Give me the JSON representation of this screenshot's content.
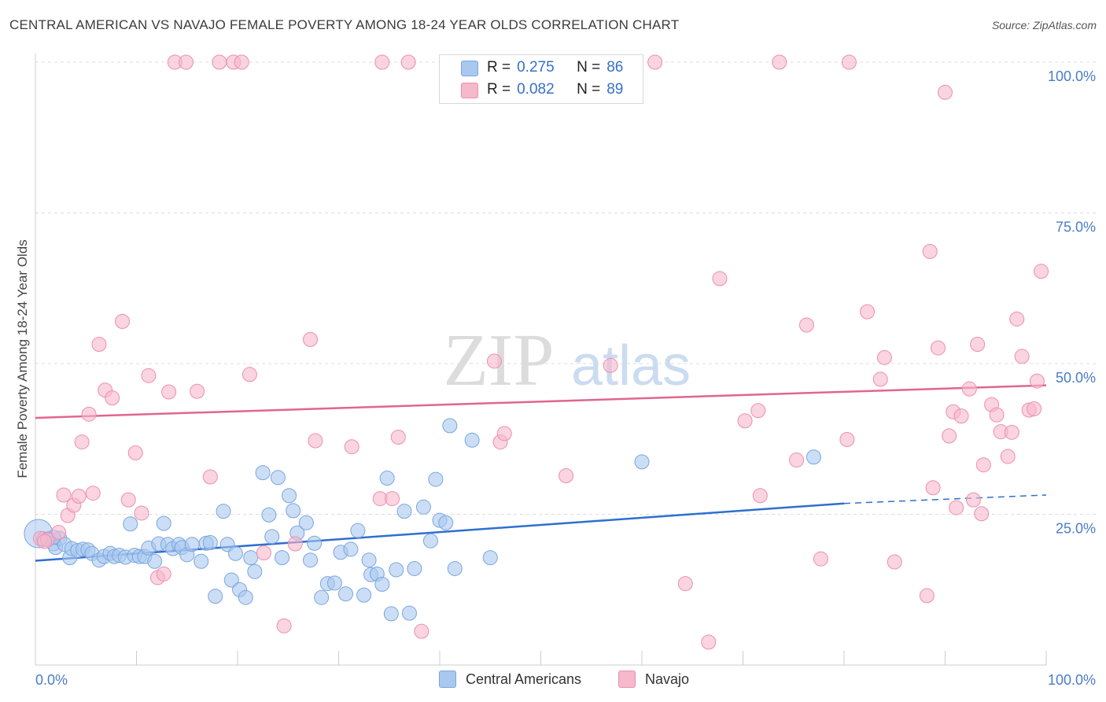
{
  "title": "CENTRAL AMERICAN VS NAVAJO FEMALE POVERTY AMONG 18-24 YEAR OLDS CORRELATION CHART",
  "source": "Source: ZipAtlas.com",
  "watermark": {
    "zip": "ZIP",
    "atlas": "atlas"
  },
  "colors": {
    "blue_fill": "#a9c8f0",
    "blue_stroke": "#7aa6de",
    "blue_line": "#2f6fcf",
    "pink_fill": "#f6b8cb",
    "pink_stroke": "#ec8fae",
    "pink_line": "#e0668f",
    "axis_text": "#4a7cc9",
    "grid": "#dddddd"
  },
  "legend": {
    "rows": [
      {
        "r_label": "R =",
        "r_value": "0.275",
        "n_label": "N =",
        "n_value": "86"
      },
      {
        "r_label": "R =",
        "r_value": "0.082",
        "n_label": "N =",
        "n_value": "89"
      }
    ]
  },
  "bottom_legend": {
    "series1": "Central Americans",
    "series2": "Navajo"
  },
  "chart_data": {
    "type": "scatter",
    "title": "CENTRAL AMERICAN VS NAVAJO FEMALE POVERTY AMONG 18-24 YEAR OLDS CORRELATION CHART",
    "xlabel": "",
    "ylabel": "Female Poverty Among 18-24 Year Olds",
    "xlim": [
      0,
      100
    ],
    "ylim": [
      0,
      100
    ],
    "x_tick_labels": [
      "0.0%",
      "100.0%"
    ],
    "y_tick_labels": [
      "25.0%",
      "50.0%",
      "75.0%",
      "100.0%"
    ],
    "y_ticks": [
      25,
      50,
      75,
      100
    ],
    "grid": true,
    "legend_position": "top-center",
    "series": [
      {
        "name": "Central Americans",
        "color": "#a9c8f0",
        "trend": {
          "x": [
            0,
            80
          ],
          "y": [
            17.3,
            26.8
          ],
          "dashed_to": [
            100,
            28.2
          ]
        },
        "points": [
          [
            0.3,
            21.8
          ],
          [
            0.8,
            20.9
          ],
          [
            1.3,
            20.9
          ],
          [
            1.8,
            20.1
          ],
          [
            2.0,
            19.5
          ],
          [
            2.4,
            21.0
          ],
          [
            2.9,
            20.0
          ],
          [
            3.4,
            17.8
          ],
          [
            3.6,
            19.3
          ],
          [
            4.2,
            19.0
          ],
          [
            4.7,
            19.2
          ],
          [
            5.2,
            19.1
          ],
          [
            5.6,
            18.5
          ],
          [
            6.3,
            17.4
          ],
          [
            6.8,
            18.0
          ],
          [
            7.4,
            18.5
          ],
          [
            7.8,
            18.0
          ],
          [
            8.3,
            18.2
          ],
          [
            8.9,
            17.9
          ],
          [
            9.4,
            23.4
          ],
          [
            9.8,
            18.2
          ],
          [
            10.3,
            18.0
          ],
          [
            10.8,
            18.0
          ],
          [
            11.2,
            19.4
          ],
          [
            11.8,
            17.2
          ],
          [
            12.2,
            20.1
          ],
          [
            12.7,
            23.5
          ],
          [
            13.1,
            20.0
          ],
          [
            13.6,
            19.3
          ],
          [
            14.2,
            20.0
          ],
          [
            14.5,
            19.5
          ],
          [
            15.0,
            18.3
          ],
          [
            15.5,
            20.0
          ],
          [
            16.4,
            17.2
          ],
          [
            16.9,
            20.2
          ],
          [
            17.3,
            20.3
          ],
          [
            17.8,
            11.4
          ],
          [
            18.6,
            25.5
          ],
          [
            19.0,
            20.0
          ],
          [
            19.4,
            14.1
          ],
          [
            19.8,
            18.5
          ],
          [
            20.2,
            12.5
          ],
          [
            20.8,
            11.2
          ],
          [
            21.3,
            17.8
          ],
          [
            21.7,
            15.5
          ],
          [
            22.5,
            31.9
          ],
          [
            23.1,
            24.9
          ],
          [
            23.4,
            21.3
          ],
          [
            24.0,
            31.1
          ],
          [
            24.4,
            17.8
          ],
          [
            25.1,
            28.1
          ],
          [
            25.5,
            25.6
          ],
          [
            25.9,
            21.9
          ],
          [
            26.8,
            23.6
          ],
          [
            27.2,
            17.4
          ],
          [
            27.6,
            20.2
          ],
          [
            28.3,
            11.2
          ],
          [
            28.9,
            13.5
          ],
          [
            29.6,
            13.6
          ],
          [
            30.2,
            18.7
          ],
          [
            30.7,
            11.8
          ],
          [
            31.2,
            19.2
          ],
          [
            31.9,
            22.3
          ],
          [
            32.5,
            11.6
          ],
          [
            33.0,
            17.4
          ],
          [
            33.2,
            15.0
          ],
          [
            33.8,
            15.1
          ],
          [
            34.3,
            13.4
          ],
          [
            34.8,
            31.0
          ],
          [
            35.2,
            8.5
          ],
          [
            35.7,
            15.8
          ],
          [
            36.5,
            25.5
          ],
          [
            37.0,
            8.6
          ],
          [
            37.5,
            16.0
          ],
          [
            38.4,
            26.2
          ],
          [
            39.1,
            20.6
          ],
          [
            39.6,
            30.8
          ],
          [
            40.0,
            24.0
          ],
          [
            40.6,
            23.6
          ],
          [
            41.0,
            39.7
          ],
          [
            41.5,
            16.0
          ],
          [
            43.2,
            37.3
          ],
          [
            45.0,
            17.8
          ],
          [
            60.0,
            33.7
          ],
          [
            77.0,
            34.5
          ],
          [
            1.8,
            21.2
          ]
        ]
      },
      {
        "name": "Navajo",
        "color": "#f6b8cb",
        "trend": {
          "x": [
            0,
            100
          ],
          "y": [
            41.0,
            46.4
          ]
        },
        "points": [
          [
            0.5,
            21.0
          ],
          [
            1.2,
            20.8
          ],
          [
            2.3,
            22.0
          ],
          [
            2.8,
            28.2
          ],
          [
            3.2,
            24.8
          ],
          [
            3.8,
            26.5
          ],
          [
            4.3,
            28.0
          ],
          [
            4.6,
            37.0
          ],
          [
            5.3,
            41.6
          ],
          [
            5.7,
            28.5
          ],
          [
            6.3,
            53.2
          ],
          [
            6.9,
            45.6
          ],
          [
            7.6,
            44.3
          ],
          [
            8.6,
            57.0
          ],
          [
            9.2,
            27.4
          ],
          [
            9.9,
            35.2
          ],
          [
            10.5,
            25.2
          ],
          [
            11.2,
            48.0
          ],
          [
            12.1,
            14.5
          ],
          [
            12.7,
            15.1
          ],
          [
            13.2,
            45.3
          ],
          [
            13.8,
            100
          ],
          [
            14.9,
            100
          ],
          [
            16.0,
            45.4
          ],
          [
            17.3,
            31.2
          ],
          [
            18.2,
            100
          ],
          [
            19.6,
            100
          ],
          [
            20.4,
            100
          ],
          [
            21.2,
            48.2
          ],
          [
            22.6,
            18.6
          ],
          [
            24.6,
            6.5
          ],
          [
            25.7,
            20.1
          ],
          [
            27.2,
            54.0
          ],
          [
            27.7,
            37.2
          ],
          [
            31.3,
            36.2
          ],
          [
            34.1,
            27.6
          ],
          [
            34.3,
            100
          ],
          [
            35.3,
            27.6
          ],
          [
            35.9,
            37.8
          ],
          [
            36.9,
            100
          ],
          [
            38.2,
            5.6
          ],
          [
            45.4,
            50.4
          ],
          [
            46.0,
            37.0
          ],
          [
            46.4,
            38.4
          ],
          [
            52.5,
            31.4
          ],
          [
            56.9,
            49.7
          ],
          [
            61.3,
            100
          ],
          [
            64.3,
            13.5
          ],
          [
            66.6,
            3.8
          ],
          [
            67.7,
            64.1
          ],
          [
            70.2,
            40.5
          ],
          [
            71.5,
            42.2
          ],
          [
            71.7,
            28.1
          ],
          [
            73.6,
            100
          ],
          [
            75.3,
            34.0
          ],
          [
            76.3,
            56.4
          ],
          [
            77.7,
            17.6
          ],
          [
            80.3,
            37.4
          ],
          [
            80.5,
            100
          ],
          [
            82.3,
            58.6
          ],
          [
            83.6,
            47.4
          ],
          [
            84.0,
            51.0
          ],
          [
            85.0,
            17.1
          ],
          [
            88.2,
            11.5
          ],
          [
            88.5,
            68.6
          ],
          [
            88.8,
            29.4
          ],
          [
            89.3,
            52.6
          ],
          [
            90.0,
            95.0
          ],
          [
            90.4,
            38.0
          ],
          [
            90.8,
            42.0
          ],
          [
            91.1,
            26.1
          ],
          [
            91.6,
            41.3
          ],
          [
            92.4,
            45.8
          ],
          [
            92.8,
            27.4
          ],
          [
            93.2,
            53.2
          ],
          [
            93.6,
            25.1
          ],
          [
            93.8,
            33.2
          ],
          [
            94.6,
            43.2
          ],
          [
            95.1,
            41.5
          ],
          [
            95.5,
            38.7
          ],
          [
            96.2,
            34.6
          ],
          [
            96.6,
            38.6
          ],
          [
            97.1,
            57.4
          ],
          [
            97.6,
            51.2
          ],
          [
            98.3,
            42.3
          ],
          [
            98.8,
            42.5
          ],
          [
            99.1,
            47.1
          ],
          [
            99.5,
            65.3
          ],
          [
            0.9,
            20.5
          ]
        ]
      }
    ]
  }
}
